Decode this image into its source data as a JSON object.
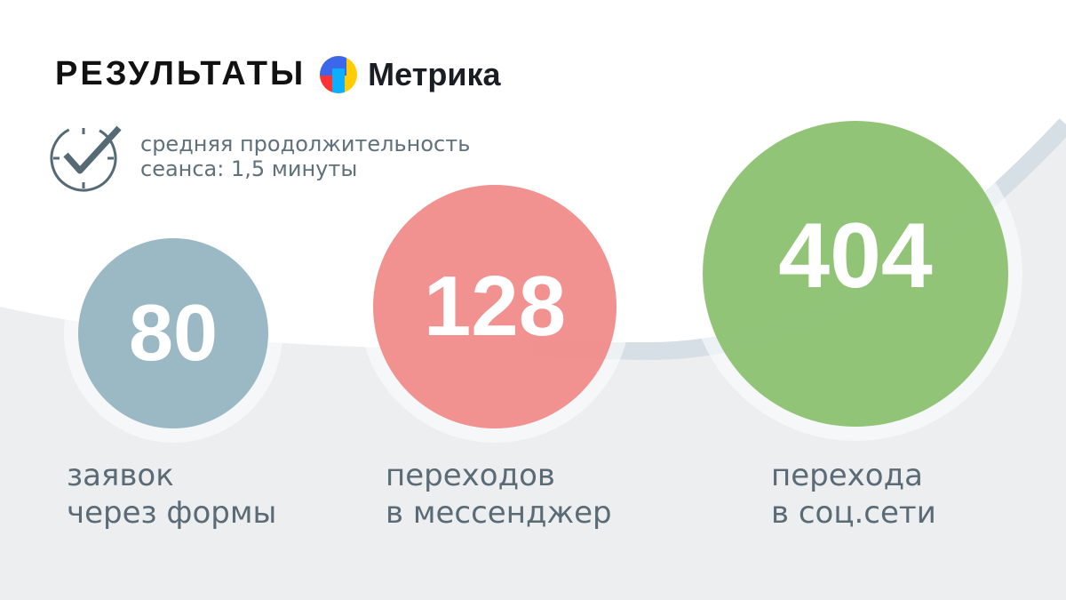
{
  "header": {
    "title": "РЕЗУЛЬТАТЫ",
    "brand": "Метрика",
    "brand_logo": "yandex-metrika-logo"
  },
  "session": {
    "icon": "clock-check-icon",
    "line1": "средняя продолжительность",
    "line2": "сеанса: 1,5 минуты"
  },
  "stats": [
    {
      "value": "80",
      "label_line1": "заявок",
      "label_line2": "через формы",
      "color": "#9bb8c5"
    },
    {
      "value": "128",
      "label_line1": "переходов",
      "label_line2": "в мессенджер",
      "color": "#f08c8b"
    },
    {
      "value": "404",
      "label_line1": "перехода",
      "label_line2": "в соц.сети",
      "color": "#8ec274"
    }
  ],
  "colors": {
    "background": "#eceef0",
    "band": "#d6dfe5",
    "text": "#5a6b76"
  }
}
